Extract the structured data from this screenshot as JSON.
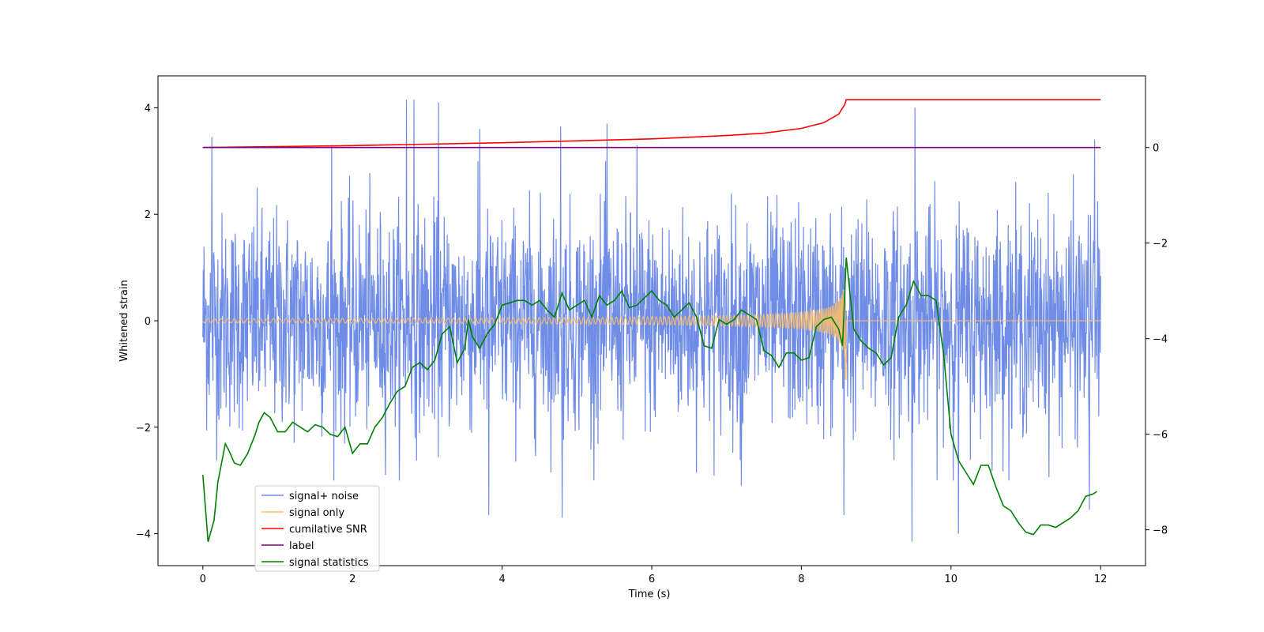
{
  "chart_data": {
    "type": "line",
    "xlabel": "Time (s)",
    "ylabel": "Whitened strain",
    "xlim": [
      -0.6,
      12.6
    ],
    "ylim": [
      -4.6,
      4.6
    ],
    "y2lim": [
      -8.75,
      1.5
    ],
    "xticks": [
      0,
      2,
      4,
      6,
      8,
      10,
      12
    ],
    "xtick_labels": [
      "0",
      "2",
      "4",
      "6",
      "8",
      "10",
      "12"
    ],
    "yticks": [
      -4,
      -2,
      0,
      2,
      4
    ],
    "ytick_labels": [
      "−4",
      "−2",
      "0",
      "2",
      "4"
    ],
    "y2ticks": [
      -8,
      -6,
      -4,
      -2,
      0
    ],
    "y2tick_labels": [
      "−8",
      "−6",
      "−4",
      "−2",
      "0"
    ],
    "legend": {
      "placement": "lower-left"
    },
    "series": [
      {
        "name": "signal+ noise",
        "axis": "left",
        "color": "#6f8ce6",
        "kind": "noise",
        "sigma": 1.0,
        "x_start": 0.0,
        "x_end": 12.0,
        "spikes": [
          {
            "x": 0.12,
            "y": 3.45
          },
          {
            "x": 1.72,
            "y": 3.3
          },
          {
            "x": 2.72,
            "y": 4.15
          },
          {
            "x": 2.82,
            "y": 4.15
          },
          {
            "x": 3.15,
            "y": 4.1
          },
          {
            "x": 3.7,
            "y": 3.6
          },
          {
            "x": 4.78,
            "y": 3.65
          },
          {
            "x": 4.8,
            "y": -3.7
          },
          {
            "x": 5.4,
            "y": 3.7
          },
          {
            "x": 3.82,
            "y": -3.65
          },
          {
            "x": 8.57,
            "y": -3.65
          },
          {
            "x": 9.52,
            "y": 4.0
          },
          {
            "x": 9.48,
            "y": -4.15
          },
          {
            "x": 10.1,
            "y": -4.0
          },
          {
            "x": 11.92,
            "y": 3.4
          },
          {
            "x": 11.85,
            "y": -3.55
          },
          {
            "x": 5.8,
            "y": 3.3
          },
          {
            "x": 7.2,
            "y": -3.1
          }
        ]
      },
      {
        "name": "signal only",
        "axis": "left",
        "color": "#ffbf66",
        "kind": "chirp",
        "x_start": 0.0,
        "x_end": 12.0,
        "merger_x": 8.6,
        "peak_amplitude": 1.1
      },
      {
        "name": "cumilative SNR",
        "axis": "right",
        "color": "#ff0000",
        "points": [
          [
            0.0,
            0.0
          ],
          [
            2.0,
            0.04
          ],
          [
            4.0,
            0.1
          ],
          [
            6.0,
            0.18
          ],
          [
            7.0,
            0.25
          ],
          [
            7.5,
            0.3
          ],
          [
            8.0,
            0.4
          ],
          [
            8.3,
            0.52
          ],
          [
            8.5,
            0.7
          ],
          [
            8.58,
            0.9
          ],
          [
            8.6,
            1.0
          ],
          [
            12.0,
            1.0
          ]
        ]
      },
      {
        "name": "label",
        "axis": "right",
        "color": "#7a007a",
        "points": [
          [
            0.0,
            0.0
          ],
          [
            12.0,
            0.0
          ]
        ]
      },
      {
        "name": "signal statistics",
        "axis": "right",
        "color": "#008000",
        "points": [
          [
            0.0,
            -6.85
          ],
          [
            0.07,
            -8.25
          ],
          [
            0.15,
            -7.8
          ],
          [
            0.2,
            -7.0
          ],
          [
            0.25,
            -6.6
          ],
          [
            0.3,
            -6.2
          ],
          [
            0.35,
            -6.35
          ],
          [
            0.42,
            -6.6
          ],
          [
            0.5,
            -6.65
          ],
          [
            0.6,
            -6.4
          ],
          [
            0.7,
            -6.0
          ],
          [
            0.75,
            -5.75
          ],
          [
            0.82,
            -5.55
          ],
          [
            0.9,
            -5.65
          ],
          [
            1.0,
            -5.95
          ],
          [
            1.1,
            -5.95
          ],
          [
            1.2,
            -5.75
          ],
          [
            1.3,
            -5.85
          ],
          [
            1.4,
            -5.95
          ],
          [
            1.5,
            -5.8
          ],
          [
            1.6,
            -5.85
          ],
          [
            1.7,
            -6.0
          ],
          [
            1.8,
            -6.05
          ],
          [
            1.9,
            -5.85
          ],
          [
            2.0,
            -6.4
          ],
          [
            2.1,
            -6.2
          ],
          [
            2.2,
            -6.2
          ],
          [
            2.3,
            -5.85
          ],
          [
            2.4,
            -5.65
          ],
          [
            2.5,
            -5.35
          ],
          [
            2.6,
            -5.1
          ],
          [
            2.7,
            -5.0
          ],
          [
            2.8,
            -4.6
          ],
          [
            2.9,
            -4.5
          ],
          [
            3.0,
            -4.65
          ],
          [
            3.1,
            -4.45
          ],
          [
            3.2,
            -3.9
          ],
          [
            3.3,
            -3.75
          ],
          [
            3.4,
            -4.5
          ],
          [
            3.5,
            -4.2
          ],
          [
            3.55,
            -3.6
          ],
          [
            3.6,
            -3.95
          ],
          [
            3.7,
            -4.2
          ],
          [
            3.8,
            -3.9
          ],
          [
            3.9,
            -3.7
          ],
          [
            4.0,
            -3.3
          ],
          [
            4.1,
            -3.25
          ],
          [
            4.2,
            -3.2
          ],
          [
            4.3,
            -3.2
          ],
          [
            4.4,
            -3.3
          ],
          [
            4.5,
            -3.2
          ],
          [
            4.6,
            -3.4
          ],
          [
            4.7,
            -3.55
          ],
          [
            4.8,
            -3.05
          ],
          [
            4.9,
            -3.4
          ],
          [
            5.0,
            -3.3
          ],
          [
            5.1,
            -3.2
          ],
          [
            5.2,
            -3.55
          ],
          [
            5.3,
            -3.1
          ],
          [
            5.4,
            -3.3
          ],
          [
            5.5,
            -3.2
          ],
          [
            5.6,
            -3.0
          ],
          [
            5.7,
            -3.35
          ],
          [
            5.8,
            -3.3
          ],
          [
            5.9,
            -3.15
          ],
          [
            6.0,
            -3.0
          ],
          [
            6.1,
            -3.2
          ],
          [
            6.2,
            -3.3
          ],
          [
            6.3,
            -3.55
          ],
          [
            6.4,
            -3.4
          ],
          [
            6.5,
            -3.25
          ],
          [
            6.6,
            -3.55
          ],
          [
            6.7,
            -4.15
          ],
          [
            6.8,
            -4.2
          ],
          [
            6.9,
            -3.6
          ],
          [
            7.0,
            -3.7
          ],
          [
            7.1,
            -3.6
          ],
          [
            7.2,
            -3.4
          ],
          [
            7.3,
            -3.5
          ],
          [
            7.4,
            -3.6
          ],
          [
            7.5,
            -4.25
          ],
          [
            7.6,
            -4.35
          ],
          [
            7.7,
            -4.6
          ],
          [
            7.8,
            -4.3
          ],
          [
            7.9,
            -4.3
          ],
          [
            8.0,
            -4.45
          ],
          [
            8.1,
            -4.4
          ],
          [
            8.2,
            -3.75
          ],
          [
            8.3,
            -3.6
          ],
          [
            8.4,
            -3.55
          ],
          [
            8.5,
            -3.8
          ],
          [
            8.55,
            -4.15
          ],
          [
            8.6,
            -2.3
          ],
          [
            8.7,
            -3.8
          ],
          [
            8.8,
            -4.05
          ],
          [
            8.9,
            -4.2
          ],
          [
            9.0,
            -4.3
          ],
          [
            9.1,
            -4.55
          ],
          [
            9.2,
            -4.4
          ],
          [
            9.3,
            -3.55
          ],
          [
            9.4,
            -3.3
          ],
          [
            9.5,
            -2.8
          ],
          [
            9.6,
            -3.1
          ],
          [
            9.7,
            -3.1
          ],
          [
            9.8,
            -3.2
          ],
          [
            9.9,
            -4.3
          ],
          [
            10.0,
            -6.0
          ],
          [
            10.1,
            -6.55
          ],
          [
            10.2,
            -6.8
          ],
          [
            10.3,
            -7.05
          ],
          [
            10.4,
            -6.65
          ],
          [
            10.5,
            -6.65
          ],
          [
            10.6,
            -7.1
          ],
          [
            10.7,
            -7.5
          ],
          [
            10.8,
            -7.6
          ],
          [
            10.9,
            -7.85
          ],
          [
            11.0,
            -8.05
          ],
          [
            11.1,
            -8.1
          ],
          [
            11.2,
            -7.9
          ],
          [
            11.3,
            -7.9
          ],
          [
            11.4,
            -7.95
          ],
          [
            11.5,
            -7.85
          ],
          [
            11.6,
            -7.75
          ],
          [
            11.7,
            -7.6
          ],
          [
            11.8,
            -7.3
          ],
          [
            11.9,
            -7.25
          ],
          [
            11.95,
            -7.2
          ]
        ]
      }
    ]
  }
}
